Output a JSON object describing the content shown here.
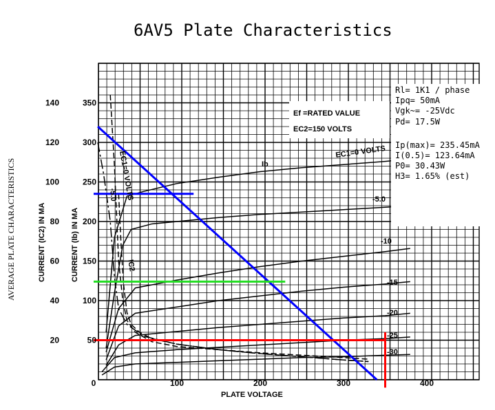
{
  "chart_data": {
    "type": "line",
    "title": "6AV5 Plate Characteristics",
    "side_label": "AVERAGE PLATE CHARACTERISTICS",
    "xlabel": "PLATE VOLTAGE",
    "ylabel_ib": "CURRENT (Ib) IN MA",
    "ylabel_ic2": "CURRENT (IC2) IN MA",
    "xlim": [
      0,
      450
    ],
    "ylim": [
      0,
      380
    ],
    "x_ticks": [
      "0",
      "100",
      "200",
      "300",
      "400"
    ],
    "y_ticks_ib": [
      "50",
      "100",
      "150",
      "200",
      "250",
      "300",
      "350"
    ],
    "y_ticks_ic2": [
      "20",
      "40",
      "60",
      "80",
      "100",
      "120",
      "140"
    ],
    "condition_box": [
      "Ef =RATED VALUE",
      "EC2=150 VOLTS"
    ],
    "annotations": [
      "Rl= 1K1 / phase",
      "Ipq= 50mA",
      "Vgk~= -25Vdc",
      "Pd= 17.5W",
      "Ip(max)= 235.45mA",
      "I(0.5)= 123.64mA",
      "P0= 30.43W",
      "H3= 1.65% (est)"
    ],
    "series": [
      {
        "name": "EC1=0 VOLTS",
        "x": [
          15,
          25,
          40,
          60,
          100,
          150,
          200,
          250,
          300,
          350,
          380
        ],
        "y": [
          60,
          180,
          232,
          238,
          248,
          256,
          263,
          268,
          272,
          276,
          279
        ]
      },
      {
        "name": "-5.0",
        "x": [
          15,
          25,
          35,
          45,
          70,
          100,
          150,
          200,
          250,
          300,
          350,
          380
        ],
        "y": [
          40,
          110,
          170,
          190,
          197,
          200,
          205,
          209,
          212,
          215,
          218,
          220
        ]
      },
      {
        "name": "-10",
        "x": [
          15,
          30,
          50,
          100,
          150,
          200,
          250,
          300,
          350,
          380
        ],
        "y": [
          35,
          90,
          116,
          126,
          135,
          143,
          150,
          156,
          162,
          166
        ]
      },
      {
        "name": "-15",
        "x": [
          15,
          30,
          50,
          100,
          150,
          200,
          250,
          300,
          350,
          380
        ],
        "y": [
          25,
          68,
          84,
          92,
          100,
          106,
          112,
          117,
          121,
          124
        ]
      },
      {
        "name": "-20",
        "x": [
          15,
          30,
          50,
          100,
          150,
          200,
          250,
          300,
          350,
          380
        ],
        "y": [
          18,
          44,
          56,
          61,
          66,
          70,
          74,
          78,
          81,
          84
        ]
      },
      {
        "name": "-25",
        "x": [
          10,
          25,
          50,
          100,
          150,
          200,
          250,
          300,
          350,
          380
        ],
        "y": [
          10,
          28,
          34,
          38,
          41,
          44,
          47,
          50,
          52,
          54
        ]
      },
      {
        "name": "-30",
        "x": [
          10,
          25,
          50,
          100,
          150,
          200,
          250,
          300,
          350,
          380
        ],
        "y": [
          6,
          16,
          20,
          22,
          24,
          26,
          28,
          29,
          31,
          32
        ]
      },
      {
        "name": "EC1=0 VOLTS",
        "x": [
          20,
          25,
          30,
          35,
          40,
          50,
          70,
          100,
          150,
          200,
          250,
          300,
          330
        ],
        "y": [
          360,
          270,
          150,
          100,
          75,
          60,
          48,
          42,
          38,
          34,
          31,
          28,
          26
        ]
      },
      {
        "name": "-5.0",
        "x": [
          5,
          12,
          20,
          25,
          30,
          40,
          60,
          100,
          150,
          200,
          250,
          300,
          330
        ],
        "y": [
          300,
          260,
          200,
          130,
          90,
          70,
          55,
          45,
          38,
          33,
          29,
          25,
          23
        ]
      },
      {
        "name": "IC2",
        "x": [
          30,
          33,
          36,
          40,
          45,
          55,
          70,
          100,
          150,
          200,
          250,
          300,
          330
        ],
        "y": [
          235,
          170,
          120,
          85,
          70,
          60,
          52,
          45,
          38,
          33,
          29,
          25,
          23
        ]
      },
      {
        "name": "Ib",
        "x": [
          190
        ],
        "y": [
          268
        ]
      }
    ],
    "load_line": {
      "x": [
        5,
        340
      ],
      "y": [
        320,
        0
      ]
    },
    "operating_lines": [
      {
        "x": [
          0,
          120
        ],
        "y": [
          235,
          235
        ]
      },
      {
        "x": [
          0,
          230
        ],
        "y": [
          124,
          124
        ]
      },
      {
        "x": [
          0,
          350
        ],
        "y": [
          50,
          50
        ]
      },
      {
        "x": [
          350,
          350
        ],
        "y": [
          60,
          -10
        ]
      }
    ]
  }
}
